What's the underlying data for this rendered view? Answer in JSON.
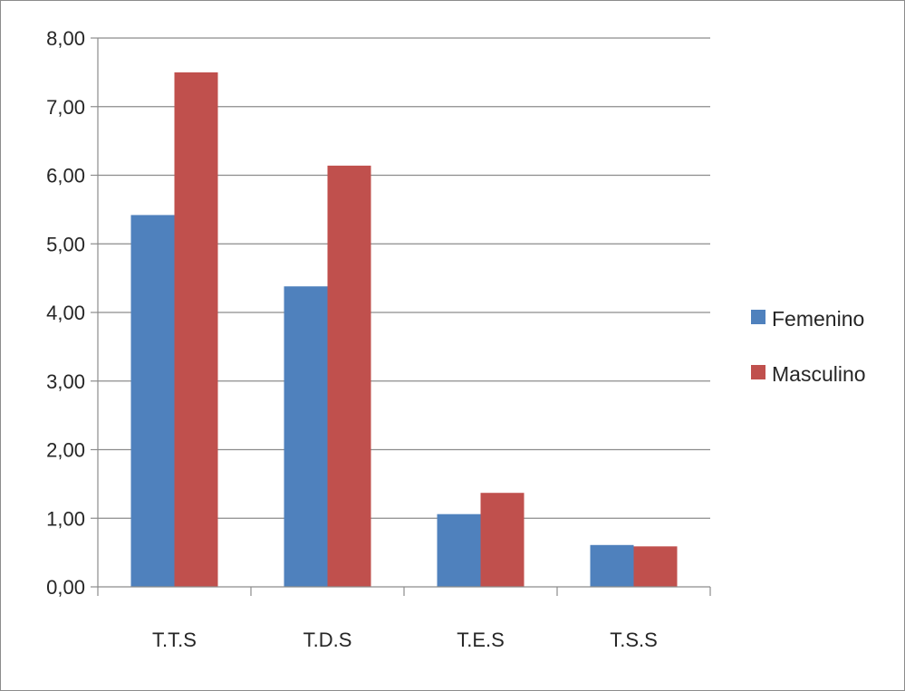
{
  "chart_data": {
    "type": "bar",
    "categories": [
      "T.T.S",
      "T.D.S",
      "T.E.S",
      "T.S.S"
    ],
    "series": [
      {
        "name": "Femenino",
        "color": "#4f81bd",
        "values": [
          5.42,
          4.38,
          1.06,
          0.61
        ]
      },
      {
        "name": "Masculino",
        "color": "#c0504d",
        "values": [
          7.5,
          6.14,
          1.37,
          0.59
        ]
      }
    ],
    "title": "",
    "xlabel": "",
    "ylabel": "",
    "ylim": [
      0,
      8
    ],
    "yticks": [
      "0,00",
      "1,00",
      "2,00",
      "3,00",
      "4,00",
      "5,00",
      "6,00",
      "7,00",
      "8,00"
    ],
    "grid": true,
    "legend_position": "right"
  }
}
